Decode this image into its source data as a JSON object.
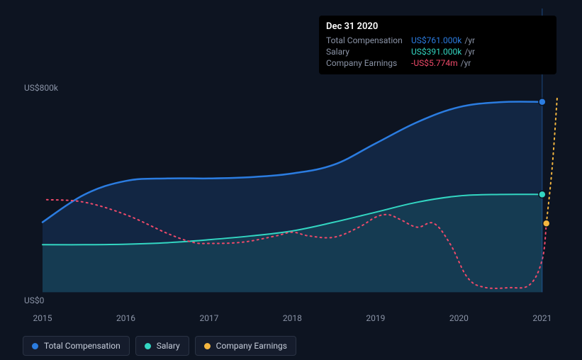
{
  "chart": {
    "type": "area-line",
    "background_color": "#0d1421",
    "plot_background": "transparent",
    "x": {
      "categories": [
        "2015",
        "2016",
        "2017",
        "2018",
        "2019",
        "2020",
        "2021"
      ],
      "label_fontsize": 12,
      "label_color": "#8a93a6"
    },
    "y": {
      "ticks": [
        {
          "value": 0,
          "label": "US$0"
        },
        {
          "value": 800,
          "label": "US$800k"
        }
      ],
      "min": -50,
      "max": 800,
      "label_fontsize": 12,
      "label_color": "#8a93a6"
    },
    "series": [
      {
        "name": "Total Compensation",
        "color": "#2b7ce0",
        "fill": "rgba(43,124,224,0.18)",
        "line_width": 2.5,
        "type": "area",
        "marker": {
          "x": 2021,
          "y": 761,
          "color": "#2b7ce0"
        },
        "data": [
          {
            "x": 2015.0,
            "y": 280
          },
          {
            "x": 2015.5,
            "y": 390
          },
          {
            "x": 2016.0,
            "y": 445
          },
          {
            "x": 2016.5,
            "y": 455
          },
          {
            "x": 2017.0,
            "y": 455
          },
          {
            "x": 2017.5,
            "y": 460
          },
          {
            "x": 2018.0,
            "y": 475
          },
          {
            "x": 2018.5,
            "y": 510
          },
          {
            "x": 2019.0,
            "y": 595
          },
          {
            "x": 2019.5,
            "y": 680
          },
          {
            "x": 2020.0,
            "y": 740
          },
          {
            "x": 2020.5,
            "y": 760
          },
          {
            "x": 2021.0,
            "y": 761
          }
        ]
      },
      {
        "name": "Salary",
        "color": "#33d6c2",
        "fill": "rgba(51,214,194,0.12)",
        "line_width": 2,
        "type": "area",
        "marker": {
          "x": 2021,
          "y": 391,
          "color": "#33d6c2"
        },
        "data": [
          {
            "x": 2015.0,
            "y": 190
          },
          {
            "x": 2015.5,
            "y": 190
          },
          {
            "x": 2016.0,
            "y": 192
          },
          {
            "x": 2016.5,
            "y": 198
          },
          {
            "x": 2017.0,
            "y": 210
          },
          {
            "x": 2017.5,
            "y": 225
          },
          {
            "x": 2018.0,
            "y": 245
          },
          {
            "x": 2018.5,
            "y": 280
          },
          {
            "x": 2019.0,
            "y": 320
          },
          {
            "x": 2019.5,
            "y": 360
          },
          {
            "x": 2020.0,
            "y": 385
          },
          {
            "x": 2020.5,
            "y": 391
          },
          {
            "x": 2021.0,
            "y": 391
          }
        ]
      },
      {
        "name": "Company Earnings",
        "color": "#f4b63f",
        "line_width": 2,
        "type": "dotted",
        "dash": "2,5",
        "marker": {
          "x": 2021.05,
          "y": 275,
          "color": "#f4b63f"
        },
        "segments": [
          {
            "color": "#ef4a6a",
            "data": [
              {
                "x": 2015.05,
                "y": 370
              },
              {
                "x": 2015.5,
                "y": 360
              },
              {
                "x": 2016.0,
                "y": 310
              },
              {
                "x": 2016.5,
                "y": 235
              },
              {
                "x": 2016.8,
                "y": 200
              },
              {
                "x": 2017.0,
                "y": 195
              },
              {
                "x": 2017.4,
                "y": 200
              },
              {
                "x": 2017.8,
                "y": 225
              },
              {
                "x": 2018.0,
                "y": 240
              },
              {
                "x": 2018.2,
                "y": 225
              },
              {
                "x": 2018.5,
                "y": 220
              },
              {
                "x": 2018.8,
                "y": 260
              },
              {
                "x": 2019.0,
                "y": 300
              },
              {
                "x": 2019.15,
                "y": 310
              },
              {
                "x": 2019.3,
                "y": 290
              },
              {
                "x": 2019.5,
                "y": 260
              },
              {
                "x": 2019.7,
                "y": 275
              },
              {
                "x": 2019.9,
                "y": 190
              },
              {
                "x": 2020.1,
                "y": 60
              },
              {
                "x": 2020.3,
                "y": 20
              },
              {
                "x": 2020.6,
                "y": 18
              },
              {
                "x": 2020.85,
                "y": 30
              },
              {
                "x": 2021.0,
                "y": 130
              },
              {
                "x": 2021.05,
                "y": 275
              }
            ]
          },
          {
            "color": "#f4b63f",
            "data": [
              {
                "x": 2021.05,
                "y": 275
              },
              {
                "x": 2021.12,
                "y": 500
              },
              {
                "x": 2021.18,
                "y": 780
              }
            ]
          }
        ]
      }
    ],
    "cursor_line": {
      "x": 2021,
      "color": "#2b7ce0",
      "opacity": 0.5
    }
  },
  "tooltip": {
    "date": "Dec 31 2020",
    "rows": [
      {
        "label": "Total Compensation",
        "value": "US$761.000k",
        "unit": "/yr",
        "value_color": "#2b7ce0"
      },
      {
        "label": "Salary",
        "value": "US$391.000k",
        "unit": "/yr",
        "value_color": "#33d6c2"
      },
      {
        "label": "Company Earnings",
        "value": "-US$5.774m",
        "unit": "/yr",
        "value_color": "#ef4a6a"
      }
    ]
  },
  "legend": {
    "items": [
      {
        "label": "Total Compensation",
        "color": "#2b7ce0"
      },
      {
        "label": "Salary",
        "color": "#33d6c2"
      },
      {
        "label": "Company Earnings",
        "color": "#f4b63f"
      }
    ]
  }
}
